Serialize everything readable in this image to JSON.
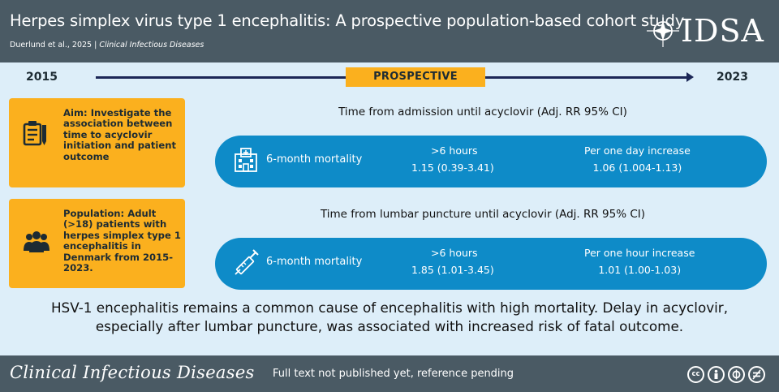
{
  "header": {
    "title": "Herpes simplex virus type 1 encephalitis: A prospective population-based cohort study",
    "citation_authors": "Duerlund et al., 2025 |",
    "citation_journal": "Clinical Infectious Diseases",
    "logo_text": "IDSA",
    "logo_icon": "star-compass-icon"
  },
  "timeline": {
    "start_year": "2015",
    "end_year": "2023",
    "badge": "PROSPECTIVE"
  },
  "aim": {
    "icon": "notes-icon",
    "text": "Aim:  Investigate the association between time to acyclovir initiation and patient outcome"
  },
  "population": {
    "icon": "people-icon",
    "text": "Population: Adult (>18) patients with herpes simplex type 1 encephalitis in Denmark from 2015-2023."
  },
  "admission": {
    "title": "Time from admission until acyclovir (Adj. RR 95% CI)",
    "icon": "hospital-icon",
    "outcome": "6-month mortality",
    "col1_header": ">6 hours",
    "col1_value": "1.15 (0.39-3.41)",
    "col2_header": "Per one day increase",
    "col2_value": "1.06 (1.004-1.13)"
  },
  "lumbar": {
    "title": "Time from lumbar puncture until acyclovir (Adj. RR 95% CI)",
    "icon": "syringe-icon",
    "outcome": "6-month mortality",
    "col1_header": ">6 hours",
    "col1_value": "1.85 (1.01-3.45)",
    "col2_header": "Per one hour increase",
    "col2_value": "1.01 (1.00-1.03)"
  },
  "summary": {
    "line1": "HSV-1 encephalitis remains a common cause of encephalitis with high mortality. Delay in acyclovir,",
    "line2": "especially after lumbar puncture, was associated with increased risk of fatal outcome."
  },
  "footer": {
    "journal": "Clinical Infectious Diseases",
    "note": "Full text not published yet, reference pending",
    "license_icons": [
      "cc",
      "by",
      "nc",
      "nd"
    ]
  },
  "colors": {
    "header": "#4a5a64",
    "accent": "#fbb01e",
    "pill": "#0e8bc8",
    "background": "#ddeef9",
    "timeline": "#1c2757"
  }
}
